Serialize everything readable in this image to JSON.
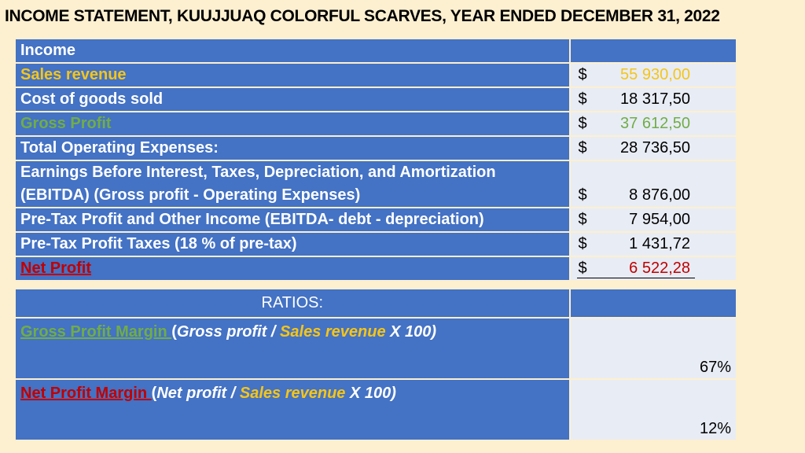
{
  "title": "INCOME STATEMENT, KUUJJUAQ COLORFUL SCARVES, YEAR ENDED DECEMBER 31, 2022",
  "income_header": "Income",
  "rows": [
    {
      "label": "Sales revenue",
      "currency": "$",
      "amount": "55 930,00"
    },
    {
      "label": "Cost of goods sold",
      "currency": "$",
      "amount": "18 317,50"
    },
    {
      "label": "Gross Profit",
      "currency": "$",
      "amount": "37 612,50"
    },
    {
      "label": "Total Operating Expenses:",
      "currency": "$",
      "amount": "28 736,50"
    },
    {
      "label_line1": "Earnings Before Interest, Taxes, Depreciation, and Amortization",
      "label_line2": "(EBITDA) (Gross profit - Operating Expenses)",
      "currency": "$",
      "amount": "8 876,00"
    },
    {
      "label": "Pre-Tax Profit and Other Income (EBITDA- debt - depreciation)",
      "currency": "$",
      "amount": "7 954,00"
    },
    {
      "label": "Pre-Tax Profit Taxes (18 % of pre-tax)",
      "currency": "$",
      "amount": "1 431,72"
    },
    {
      "label": "Net Profit",
      "currency": "$",
      "amount": "6 522,28"
    }
  ],
  "ratios": {
    "header": "RATIOS:",
    "gross_margin": {
      "name": "Gross Profit Margin ",
      "open": "(",
      "numerator": "Gross profit / ",
      "denominator": "Sales revenue",
      "suffix": " X 100)",
      "value": "67%"
    },
    "net_margin": {
      "name": "Net Profit Margin ",
      "open": "(",
      "numerator": "Net profit / ",
      "denominator": "Sales revenue",
      "suffix": " X 100)",
      "value": "12%"
    }
  },
  "colors": {
    "header_blue": "#4472c4",
    "value_bg": "#e8ecf4",
    "yellow": "#f5c518",
    "green": "#70ad47",
    "red": "#c00000",
    "page_bg": "#fdf0d0"
  }
}
